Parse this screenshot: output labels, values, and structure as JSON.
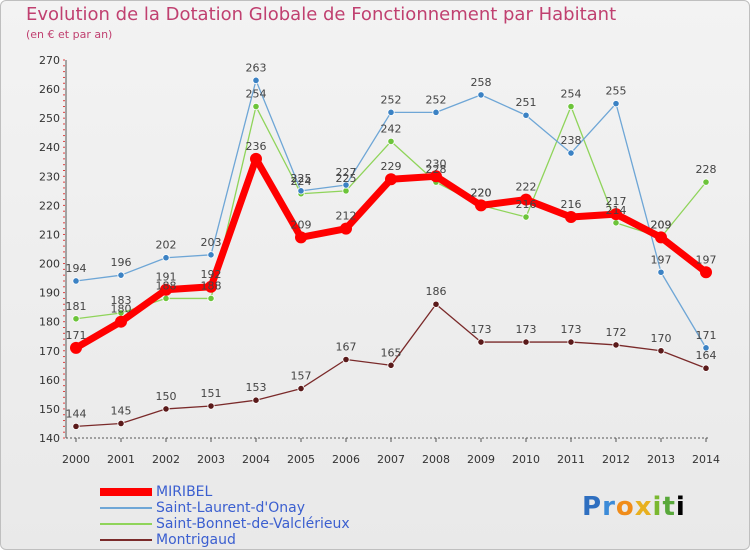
{
  "title": "Evolution de la Dotation Globale de Fonctionnement par Habitant",
  "subtitle": "(en € et par an)",
  "logo": "Proxiti",
  "chart_data": {
    "type": "line",
    "x": [
      "2000",
      "2001",
      "2002",
      "2003",
      "2004",
      "2005",
      "2006",
      "2007",
      "2008",
      "2009",
      "2010",
      "2011",
      "2012",
      "2013",
      "2014"
    ],
    "ylim": [
      140,
      270
    ],
    "yticks": [
      140,
      150,
      160,
      170,
      180,
      190,
      200,
      210,
      220,
      230,
      240,
      250,
      260,
      270
    ],
    "grid": false,
    "legend_position": "bottom-left",
    "series": [
      {
        "name": "MIRIBEL",
        "color": "#ff0000",
        "marker": "#ff0000",
        "values": [
          171,
          180,
          191,
          192,
          236,
          209,
          212,
          229,
          230,
          220,
          222,
          216,
          217,
          209,
          197
        ]
      },
      {
        "name": "Saint-Laurent-d'Onay",
        "color": "#6ea6d6",
        "marker": "#3b82c4",
        "values": [
          194,
          196,
          202,
          203,
          263,
          225,
          227,
          252,
          252,
          258,
          251,
          238,
          255,
          197,
          171
        ]
      },
      {
        "name": "Saint-Bonnet-de-Valclérieux",
        "color": "#8fd45a",
        "marker": "#6cc43a",
        "values": [
          181,
          183,
          188,
          188,
          254,
          224,
          225,
          242,
          228,
          220,
          216,
          254,
          214,
          209,
          228
        ]
      },
      {
        "name": "Montrigaud",
        "color": "#7a2a2a",
        "marker": "#5a1a1a",
        "values": [
          144,
          145,
          150,
          151,
          153,
          157,
          167,
          165,
          186,
          173,
          173,
          173,
          172,
          170,
          164
        ]
      }
    ]
  }
}
